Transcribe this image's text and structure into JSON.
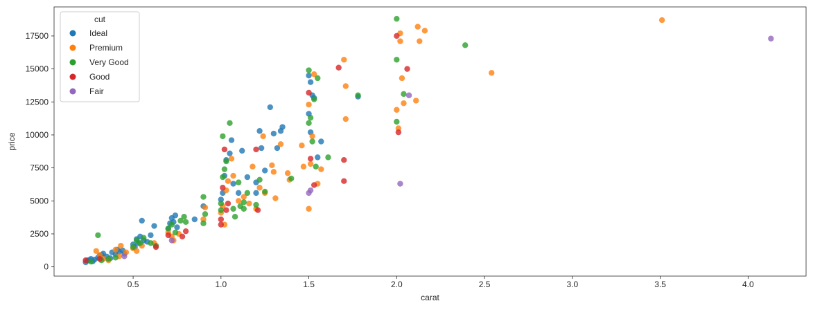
{
  "chart_data": {
    "type": "scatter",
    "xlabel": "carat",
    "ylabel": "price",
    "xlim": [
      0.05,
      4.33
    ],
    "ylim": [
      -700,
      19700
    ],
    "xticks": [
      0.5,
      1.0,
      1.5,
      2.0,
      2.5,
      3.0,
      3.5,
      4.0
    ],
    "xtick_labels": [
      "0.5",
      "1.0",
      "1.5",
      "2.0",
      "2.5",
      "3.0",
      "3.5",
      "4.0"
    ],
    "yticks": [
      0,
      2500,
      5000,
      7500,
      10000,
      12500,
      15000,
      17500
    ],
    "ytick_labels": [
      "0",
      "2500",
      "5000",
      "7500",
      "10000",
      "12500",
      "15000",
      "17500"
    ],
    "grid": false,
    "legend": {
      "title": "cut",
      "placement": "top-left"
    },
    "series": [
      {
        "name": "Ideal",
        "color": "#1f77b4",
        "points": [
          [
            0.23,
            350
          ],
          [
            0.24,
            480
          ],
          [
            0.25,
            520
          ],
          [
            0.26,
            600
          ],
          [
            0.27,
            420
          ],
          [
            0.28,
            550
          ],
          [
            0.3,
            700
          ],
          [
            0.31,
            850
          ],
          [
            0.32,
            900
          ],
          [
            0.33,
            1000
          ],
          [
            0.35,
            780
          ],
          [
            0.37,
            650
          ],
          [
            0.38,
            1100
          ],
          [
            0.4,
            950
          ],
          [
            0.41,
            1300
          ],
          [
            0.42,
            1150
          ],
          [
            0.44,
            1250
          ],
          [
            0.45,
            1000
          ],
          [
            0.5,
            1700
          ],
          [
            0.51,
            1500
          ],
          [
            0.52,
            2100
          ],
          [
            0.53,
            1800
          ],
          [
            0.54,
            2300
          ],
          [
            0.55,
            3500
          ],
          [
            0.56,
            2000
          ],
          [
            0.58,
            1900
          ],
          [
            0.6,
            2400
          ],
          [
            0.62,
            3100
          ],
          [
            0.7,
            2900
          ],
          [
            0.71,
            3300
          ],
          [
            0.72,
            3700
          ],
          [
            0.73,
            3400
          ],
          [
            0.74,
            3900
          ],
          [
            0.75,
            3000
          ],
          [
            0.85,
            3600
          ],
          [
            0.9,
            4600
          ],
          [
            1.0,
            5100
          ],
          [
            1.01,
            5600
          ],
          [
            1.02,
            6900
          ],
          [
            1.03,
            8100
          ],
          [
            1.05,
            8600
          ],
          [
            1.06,
            9600
          ],
          [
            1.07,
            6300
          ],
          [
            1.1,
            5600
          ],
          [
            1.12,
            8800
          ],
          [
            1.15,
            6800
          ],
          [
            1.2,
            6400
          ],
          [
            1.22,
            10300
          ],
          [
            1.23,
            9000
          ],
          [
            1.25,
            7300
          ],
          [
            1.28,
            12100
          ],
          [
            1.3,
            10100
          ],
          [
            1.32,
            9000
          ],
          [
            1.34,
            10300
          ],
          [
            1.35,
            10600
          ],
          [
            1.5,
            14500
          ],
          [
            1.51,
            14000
          ],
          [
            1.52,
            13000
          ],
          [
            1.5,
            11600
          ],
          [
            1.51,
            10200
          ],
          [
            1.53,
            12800
          ],
          [
            1.55,
            8300
          ],
          [
            1.57,
            9500
          ],
          [
            1.78,
            12900
          ],
          [
            1.2,
            5600
          ]
        ]
      },
      {
        "name": "Premium",
        "color": "#ff7f0e",
        "points": [
          [
            0.29,
            1200
          ],
          [
            0.31,
            900
          ],
          [
            0.33,
            600
          ],
          [
            0.36,
            500
          ],
          [
            0.4,
            1300
          ],
          [
            0.42,
            800
          ],
          [
            0.43,
            1600
          ],
          [
            0.46,
            1100
          ],
          [
            0.5,
            1400
          ],
          [
            0.52,
            1200
          ],
          [
            0.55,
            1600
          ],
          [
            0.62,
            1800
          ],
          [
            0.7,
            2600
          ],
          [
            0.72,
            2300
          ],
          [
            0.73,
            2000
          ],
          [
            0.76,
            2500
          ],
          [
            0.9,
            3600
          ],
          [
            0.91,
            4500
          ],
          [
            1.0,
            4100
          ],
          [
            1.01,
            4600
          ],
          [
            1.02,
            3200
          ],
          [
            1.03,
            5800
          ],
          [
            1.04,
            6500
          ],
          [
            1.06,
            8200
          ],
          [
            1.07,
            6900
          ],
          [
            1.1,
            5000
          ],
          [
            1.13,
            5300
          ],
          [
            1.16,
            4800
          ],
          [
            1.2,
            4400
          ],
          [
            1.22,
            6000
          ],
          [
            1.24,
            9900
          ],
          [
            1.25,
            5600
          ],
          [
            1.29,
            7700
          ],
          [
            1.3,
            7200
          ],
          [
            1.31,
            5200
          ],
          [
            1.34,
            9300
          ],
          [
            1.38,
            7100
          ],
          [
            1.39,
            6600
          ],
          [
            1.46,
            9200
          ],
          [
            1.47,
            7600
          ],
          [
            1.5,
            12300
          ],
          [
            1.51,
            7800
          ],
          [
            1.52,
            9900
          ],
          [
            1.53,
            14600
          ],
          [
            1.55,
            6300
          ],
          [
            1.57,
            7400
          ],
          [
            1.7,
            15700
          ],
          [
            1.71,
            13700
          ],
          [
            1.71,
            11200
          ],
          [
            1.5,
            4400
          ],
          [
            2.0,
            11900
          ],
          [
            2.01,
            10500
          ],
          [
            2.02,
            17700
          ],
          [
            2.02,
            17100
          ],
          [
            2.03,
            14300
          ],
          [
            2.04,
            12400
          ],
          [
            2.11,
            12600
          ],
          [
            2.12,
            18200
          ],
          [
            2.13,
            17100
          ],
          [
            2.16,
            17900
          ],
          [
            2.54,
            14700
          ],
          [
            3.51,
            18700
          ],
          [
            1.18,
            7600
          ]
        ]
      },
      {
        "name": "Very Good",
        "color": "#2ca02c",
        "points": [
          [
            0.26,
            400
          ],
          [
            0.3,
            2400
          ],
          [
            0.32,
            500
          ],
          [
            0.36,
            600
          ],
          [
            0.4,
            700
          ],
          [
            0.5,
            1500
          ],
          [
            0.52,
            2000
          ],
          [
            0.54,
            1800
          ],
          [
            0.56,
            2200
          ],
          [
            0.6,
            1800
          ],
          [
            0.63,
            1600
          ],
          [
            0.7,
            2900
          ],
          [
            0.72,
            3200
          ],
          [
            0.74,
            2600
          ],
          [
            0.77,
            3500
          ],
          [
            0.79,
            3800
          ],
          [
            0.8,
            3400
          ],
          [
            0.9,
            3300
          ],
          [
            0.91,
            4000
          ],
          [
            0.9,
            5300
          ],
          [
            1.0,
            4800
          ],
          [
            1.01,
            6800
          ],
          [
            1.02,
            7400
          ],
          [
            1.03,
            8000
          ],
          [
            1.01,
            9900
          ],
          [
            1.05,
            10900
          ],
          [
            1.07,
            4400
          ],
          [
            1.08,
            3800
          ],
          [
            1.1,
            6400
          ],
          [
            1.11,
            4600
          ],
          [
            1.13,
            4900
          ],
          [
            1.15,
            5600
          ],
          [
            1.2,
            4700
          ],
          [
            1.22,
            6600
          ],
          [
            1.25,
            5700
          ],
          [
            1.4,
            6700
          ],
          [
            1.5,
            14900
          ],
          [
            1.51,
            11300
          ],
          [
            1.5,
            10900
          ],
          [
            1.52,
            9500
          ],
          [
            1.53,
            12700
          ],
          [
            1.54,
            7600
          ],
          [
            1.55,
            14300
          ],
          [
            1.61,
            8300
          ],
          [
            1.78,
            13000
          ],
          [
            2.0,
            18800
          ],
          [
            2.0,
            15700
          ],
          [
            2.0,
            11000
          ],
          [
            2.04,
            13100
          ],
          [
            2.39,
            16800
          ],
          [
            1.13,
            4400
          ],
          [
            1.0,
            4300
          ]
        ]
      },
      {
        "name": "Good",
        "color": "#d62728",
        "points": [
          [
            0.23,
            500
          ],
          [
            0.31,
            600
          ],
          [
            0.63,
            1500
          ],
          [
            0.7,
            2400
          ],
          [
            0.78,
            2300
          ],
          [
            0.8,
            2700
          ],
          [
            1.0,
            3600
          ],
          [
            1.01,
            6000
          ],
          [
            1.02,
            8900
          ],
          [
            1.03,
            4300
          ],
          [
            1.04,
            4800
          ],
          [
            1.2,
            8900
          ],
          [
            1.21,
            4300
          ],
          [
            1.5,
            13200
          ],
          [
            1.51,
            8200
          ],
          [
            1.53,
            6200
          ],
          [
            1.67,
            15100
          ],
          [
            1.7,
            8100
          ],
          [
            1.7,
            6500
          ],
          [
            2.0,
            17500
          ],
          [
            2.01,
            10200
          ],
          [
            2.06,
            15000
          ],
          [
            1.0,
            3200
          ]
        ]
      },
      {
        "name": "Fair",
        "color": "#9467bd",
        "points": [
          [
            0.45,
            800
          ],
          [
            0.72,
            2000
          ],
          [
            1.5,
            5600
          ],
          [
            1.51,
            5800
          ],
          [
            2.02,
            6300
          ],
          [
            2.07,
            13000
          ],
          [
            4.13,
            17300
          ]
        ]
      }
    ]
  }
}
